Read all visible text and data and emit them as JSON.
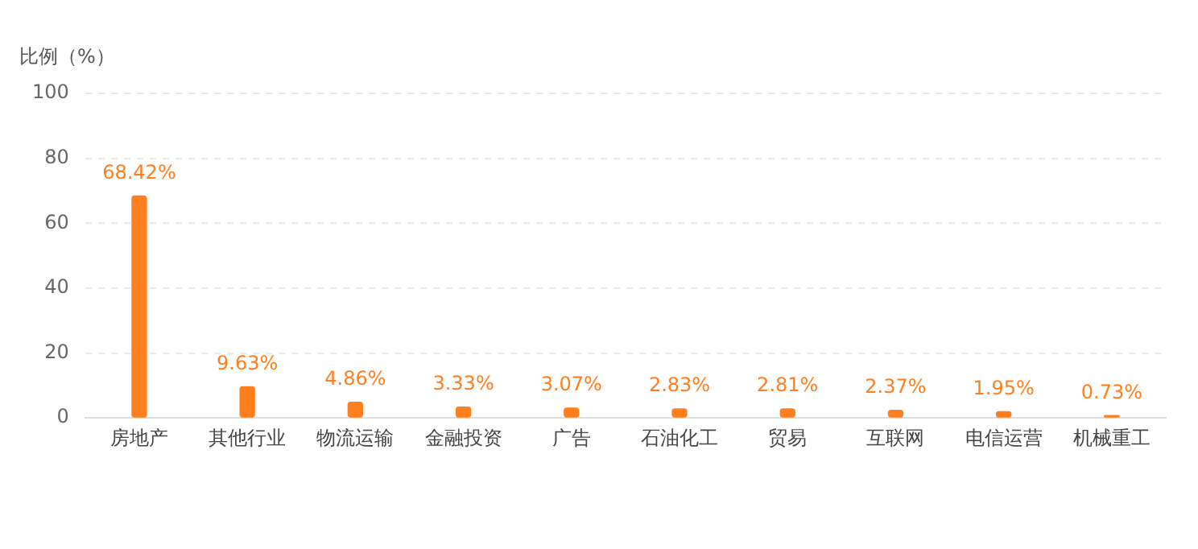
{
  "chart_data": {
    "type": "bar",
    "ylabel": "比例（%）",
    "categories": [
      "房地产",
      "其他行业",
      "物流运输",
      "金融投资",
      "广告",
      "石油化工",
      "贸易",
      "互联网",
      "电信运营",
      "机械重工"
    ],
    "values": [
      68.42,
      9.63,
      4.86,
      3.33,
      3.07,
      2.83,
      2.81,
      2.37,
      1.95,
      0.73
    ],
    "value_labels": [
      "68.42%",
      "9.63%",
      "4.86%",
      "3.33%",
      "3.07%",
      "2.83%",
      "2.81%",
      "2.37%",
      "1.95%",
      "0.73%"
    ],
    "color": "#ff7f1e",
    "ylim": [
      0,
      100
    ],
    "yticks": [
      0,
      20,
      40,
      60,
      80,
      100
    ],
    "grid": "y",
    "legend": false
  }
}
